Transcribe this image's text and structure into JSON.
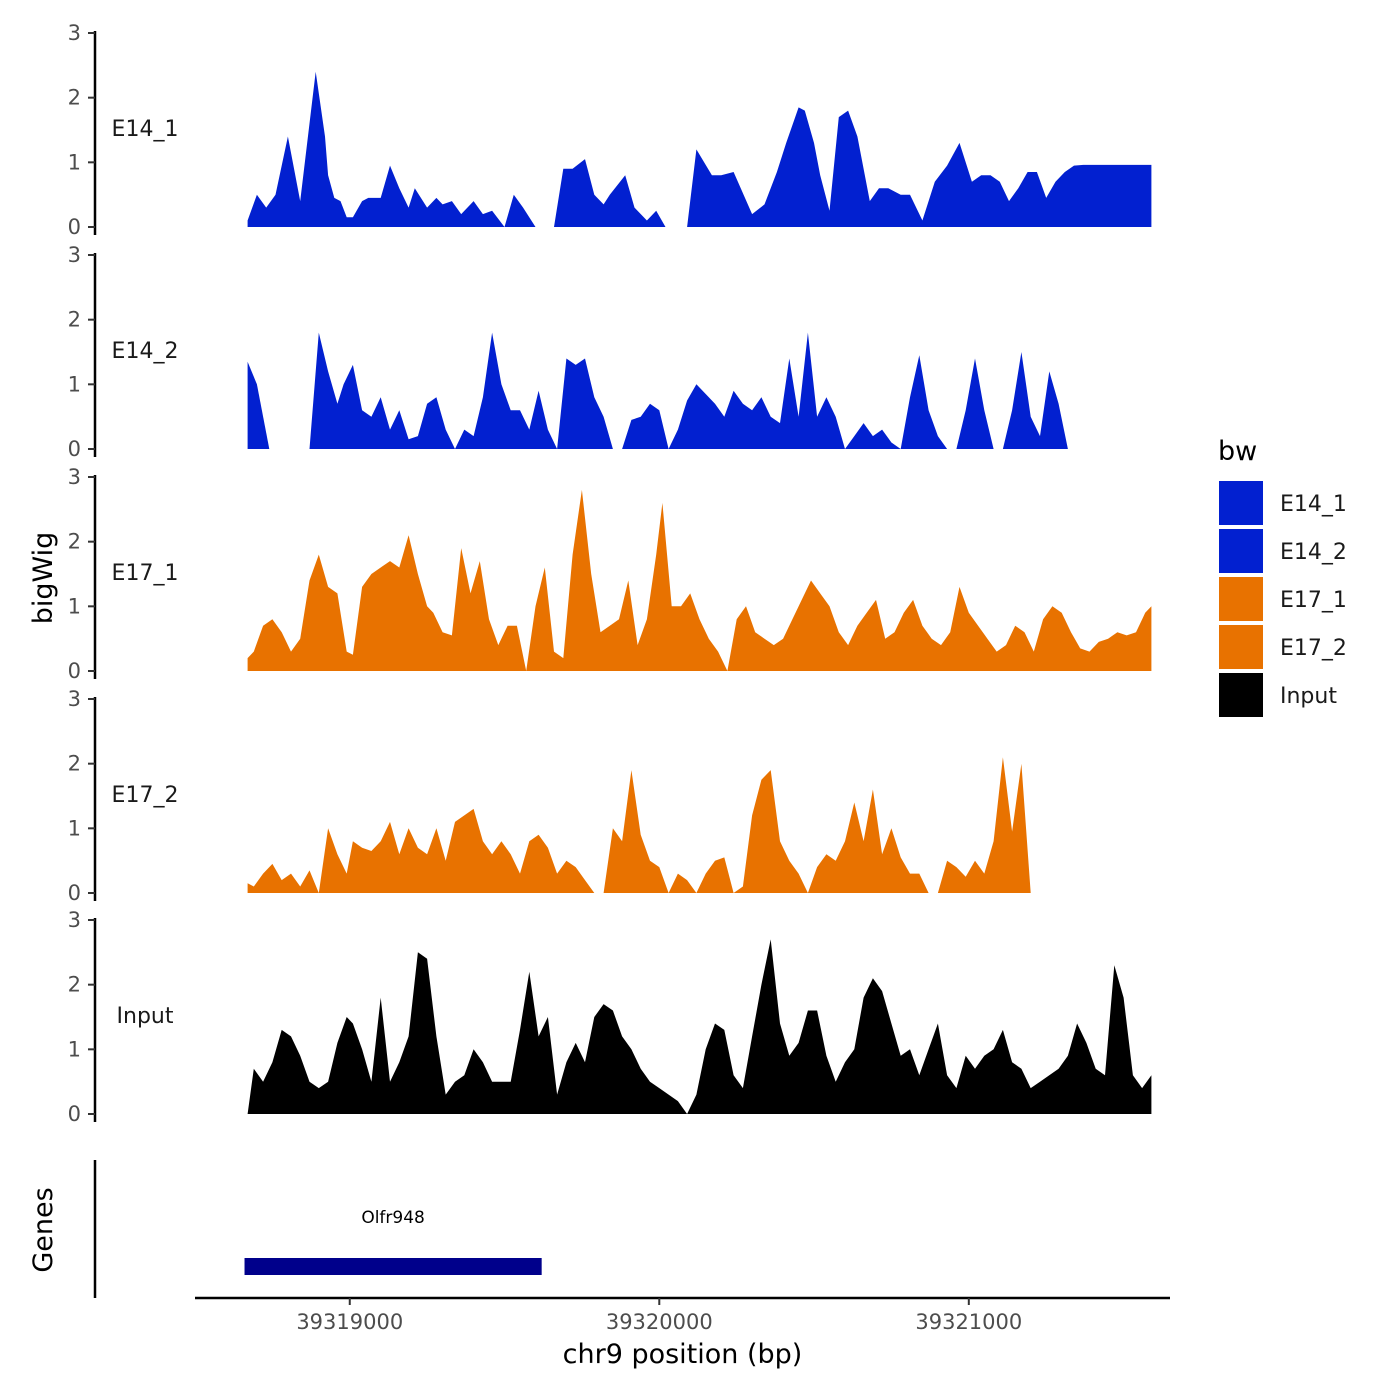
{
  "chart_data": {
    "type": "area",
    "ylabel": "bigWig",
    "xlabel": "chr9 position (bp)",
    "ylim": [
      0,
      3
    ],
    "yticks": [
      0,
      1,
      2,
      3
    ],
    "xlim": [
      39318500,
      39321650
    ],
    "xticks": [
      39319000,
      39320000,
      39321000
    ],
    "xtick_labels": [
      "39319000",
      "39320000",
      "39321000"
    ],
    "legend": {
      "title": "bw",
      "position": "right",
      "entries": [
        {
          "name": "E14_1",
          "color": "#0220D0"
        },
        {
          "name": "E14_2",
          "color": "#0220D0"
        },
        {
          "name": "E17_1",
          "color": "#E87200"
        },
        {
          "name": "E17_2",
          "color": "#E87200"
        },
        {
          "name": "Input",
          "color": "#000000"
        }
      ]
    },
    "series": [
      {
        "name": "E14_1",
        "color": "#0220D0",
        "x": [
          39318670,
          39318700,
          39318730,
          39318760,
          39318800,
          39318840,
          39318870,
          39318890,
          39318920,
          39318930,
          39318950,
          39318970,
          39318990,
          39319010,
          39319040,
          39319060,
          39319100,
          39319130,
          39319160,
          39319190,
          39319210,
          39319250,
          39319280,
          39319300,
          39319330,
          39319360,
          39319400,
          39319430,
          39319460,
          39319500,
          39319530,
          39319560,
          39319600,
          39319630,
          39319660,
          39319690,
          39319720,
          39319760,
          39319790,
          39319820,
          39319840,
          39319890,
          39319920,
          39319960,
          39319990,
          39320020,
          39320060,
          39320090,
          39320120,
          39320170,
          39320200,
          39320240,
          39320300,
          39320340,
          39320380,
          39320410,
          39320450,
          39320470,
          39320500,
          39320520,
          39320550,
          39320580,
          39320610,
          39320640,
          39320680,
          39320710,
          39320740,
          39320780,
          39320810,
          39320850,
          39320890,
          39320930,
          39320970,
          39321010,
          39321040,
          39321070,
          39321100,
          39321130,
          39321160,
          39321190,
          39321220,
          39321250,
          39321280,
          39321310,
          39321340,
          39321370,
          39321400,
          39321430,
          39321460,
          39321490,
          39321510,
          39321540,
          39321560,
          39321590
        ],
        "y": [
          0.1,
          0.5,
          0.3,
          0.5,
          1.4,
          0.4,
          1.6,
          2.4,
          1.4,
          0.8,
          0.45,
          0.4,
          0.15,
          0.15,
          0.4,
          0.45,
          0.45,
          0.95,
          0.6,
          0.3,
          0.6,
          0.3,
          0.45,
          0.35,
          0.4,
          0.2,
          0.4,
          0.2,
          0.25,
          0.0,
          0.5,
          0.3,
          0.0,
          null,
          0.0,
          0.9,
          0.9,
          1.05,
          0.5,
          0.35,
          0.5,
          0.8,
          0.3,
          0.1,
          0.25,
          0.0,
          null,
          0.0,
          1.2,
          0.8,
          0.8,
          0.85,
          0.2,
          0.35,
          0.85,
          1.3,
          1.85,
          1.8,
          1.3,
          0.8,
          0.25,
          1.7,
          1.8,
          1.4,
          0.4,
          0.6,
          0.6,
          0.5,
          0.5,
          0.1,
          0.7,
          0.95,
          1.3,
          0.7,
          0.8,
          0.8,
          0.7,
          0.4,
          0.6,
          0.85,
          0.85,
          0.45,
          0.7,
          0.85,
          0.95,
          0.96,
          0.96,
          0.96,
          0.96,
          0.96,
          0.96,
          0.96,
          0.96,
          0.96
        ]
      },
      {
        "name": "E14_2",
        "color": "#0220D0",
        "x": [
          39318670,
          39318700,
          39318740,
          39318770,
          39318800,
          39318840,
          39318870,
          39318900,
          39318930,
          39318960,
          39318980,
          39319010,
          39319040,
          39319070,
          39319100,
          39319130,
          39319160,
          39319190,
          39319220,
          39319250,
          39319280,
          39319310,
          39319340,
          39319370,
          39319400,
          39319430,
          39319460,
          39319490,
          39319520,
          39319550,
          39319580,
          39319610,
          39319640,
          39319670,
          39319700,
          39319730,
          39319760,
          39319790,
          39319820,
          39319850,
          39319880,
          39319910,
          39319940,
          39319970,
          39320000,
          39320030,
          39320060,
          39320090,
          39320120,
          39320150,
          39320180,
          39320210,
          39320240,
          39320270,
          39320300,
          39320330,
          39320360,
          39320390,
          39320420,
          39320450,
          39320480,
          39320510,
          39320540,
          39320570,
          39320600,
          39320630,
          39320660,
          39320690,
          39320720,
          39320750,
          39320780,
          39320810,
          39320840,
          39320870,
          39320900,
          39320930,
          39320960,
          39320990,
          39321020,
          39321050,
          39321080,
          39321110,
          39321140,
          39321170,
          39321200,
          39321230,
          39321260,
          39321290,
          39321320,
          39321350,
          39321380,
          39321410,
          39321440,
          39321470,
          39321500,
          39321530,
          39321560,
          39321590
        ],
        "y": [
          1.35,
          1.0,
          0.0,
          null,
          null,
          null,
          0.0,
          1.8,
          1.2,
          0.7,
          1.0,
          1.3,
          0.6,
          0.5,
          0.8,
          0.3,
          0.6,
          0.15,
          0.2,
          0.7,
          0.8,
          0.3,
          0.0,
          0.3,
          0.2,
          0.8,
          1.8,
          1.0,
          0.6,
          0.6,
          0.3,
          0.9,
          0.3,
          0.0,
          1.4,
          1.3,
          1.4,
          0.8,
          0.5,
          0.0,
          0.0,
          0.45,
          0.5,
          0.7,
          0.6,
          0.0,
          0.3,
          0.75,
          1.0,
          0.85,
          0.7,
          0.5,
          0.9,
          0.7,
          0.6,
          0.8,
          0.5,
          0.4,
          1.4,
          0.5,
          1.8,
          0.5,
          0.8,
          0.5,
          0.0,
          0.2,
          0.4,
          0.2,
          0.3,
          0.1,
          0.0,
          0.8,
          1.45,
          0.6,
          0.2,
          0.0,
          0.0,
          0.6,
          1.4,
          0.6,
          0.0,
          0.0,
          0.6,
          1.5,
          0.5,
          0.2,
          1.2,
          0.7,
          0.0,
          0.0,
          0.0,
          0.0,
          0.0,
          0.0,
          0.0,
          0.0,
          0.0,
          0.0
        ]
      },
      {
        "name": "E17_1",
        "color": "#E87200",
        "x": [
          39318670,
          39318690,
          39318720,
          39318750,
          39318780,
          39318810,
          39318840,
          39318870,
          39318900,
          39318930,
          39318960,
          39318990,
          39319010,
          39319040,
          39319070,
          39319100,
          39319130,
          39319160,
          39319190,
          39319220,
          39319250,
          39319270,
          39319300,
          39319330,
          39319360,
          39319390,
          39319420,
          39319450,
          39319480,
          39319510,
          39319540,
          39319570,
          39319600,
          39319630,
          39319660,
          39319690,
          39319720,
          39319750,
          39319780,
          39319810,
          39319840,
          39319870,
          39319900,
          39319930,
          39319960,
          39319990,
          39320010,
          39320040,
          39320070,
          39320100,
          39320130,
          39320160,
          39320190,
          39320220,
          39320250,
          39320280,
          39320310,
          39320340,
          39320370,
          39320400,
          39320430,
          39320460,
          39320490,
          39320520,
          39320550,
          39320580,
          39320610,
          39320640,
          39320670,
          39320700,
          39320730,
          39320760,
          39320790,
          39320820,
          39320850,
          39320880,
          39320910,
          39320940,
          39320970,
          39321000,
          39321030,
          39321060,
          39321090,
          39321120,
          39321150,
          39321180,
          39321210,
          39321240,
          39321270,
          39321300,
          39321330,
          39321360,
          39321390,
          39321420,
          39321450,
          39321480,
          39321510,
          39321540,
          39321570,
          39321590
        ],
        "y": [
          0.2,
          0.3,
          0.7,
          0.8,
          0.6,
          0.3,
          0.5,
          1.4,
          1.8,
          1.3,
          1.2,
          0.3,
          0.25,
          1.3,
          1.5,
          1.6,
          1.7,
          1.6,
          2.1,
          1.5,
          1.0,
          0.9,
          0.6,
          0.55,
          1.9,
          1.2,
          1.7,
          0.8,
          0.4,
          0.7,
          0.7,
          0.0,
          1.0,
          1.6,
          0.3,
          0.2,
          1.8,
          2.8,
          1.5,
          0.6,
          0.7,
          0.8,
          1.4,
          0.4,
          0.8,
          1.8,
          2.6,
          1.0,
          1.0,
          1.2,
          0.8,
          0.5,
          0.3,
          0.0,
          0.8,
          1.0,
          0.6,
          0.5,
          0.4,
          0.5,
          0.8,
          1.1,
          1.4,
          1.2,
          1.0,
          0.6,
          0.4,
          0.7,
          0.9,
          1.1,
          0.5,
          0.6,
          0.9,
          1.1,
          0.7,
          0.5,
          0.4,
          0.6,
          1.3,
          0.9,
          0.7,
          0.5,
          0.3,
          0.4,
          0.7,
          0.6,
          0.3,
          0.8,
          1.0,
          0.9,
          0.6,
          0.35,
          0.3,
          0.45,
          0.5,
          0.6,
          0.55,
          0.6,
          0.9,
          1.0
        ]
      },
      {
        "name": "E17_2",
        "color": "#E87200",
        "x": [
          39318670,
          39318690,
          39318720,
          39318750,
          39318780,
          39318810,
          39318840,
          39318870,
          39318900,
          39318930,
          39318960,
          39318990,
          39319010,
          39319040,
          39319070,
          39319100,
          39319130,
          39319160,
          39319190,
          39319220,
          39319250,
          39319280,
          39319310,
          39319340,
          39319370,
          39319400,
          39319430,
          39319460,
          39319490,
          39319520,
          39319550,
          39319580,
          39319610,
          39319640,
          39319670,
          39319700,
          39319730,
          39319760,
          39319790,
          39319820,
          39319850,
          39319880,
          39319910,
          39319940,
          39319970,
          39320000,
          39320030,
          39320060,
          39320090,
          39320120,
          39320150,
          39320180,
          39320210,
          39320240,
          39320270,
          39320300,
          39320330,
          39320360,
          39320390,
          39320420,
          39320450,
          39320480,
          39320510,
          39320540,
          39320570,
          39320600,
          39320630,
          39320660,
          39320690,
          39320720,
          39320750,
          39320780,
          39320810,
          39320840,
          39320870,
          39320900,
          39320930,
          39320960,
          39320990,
          39321020,
          39321050,
          39321080,
          39321110,
          39321140,
          39321170,
          39321200,
          39321230,
          39321260,
          39321290,
          39321320,
          39321350,
          39321380,
          39321410,
          39321440,
          39321470,
          39321500,
          39321530,
          39321560,
          39321580,
          39321590
        ],
        "y": [
          0.15,
          0.1,
          0.3,
          0.45,
          0.2,
          0.3,
          0.1,
          0.35,
          0.0,
          1.0,
          0.6,
          0.3,
          0.8,
          0.7,
          0.65,
          0.8,
          1.1,
          0.6,
          1.0,
          0.7,
          0.6,
          1.0,
          0.5,
          1.1,
          1.2,
          1.3,
          0.8,
          0.6,
          0.8,
          0.6,
          0.3,
          0.8,
          0.9,
          0.7,
          0.3,
          0.5,
          0.4,
          0.2,
          0.0,
          0.0,
          1.0,
          0.8,
          1.9,
          0.9,
          0.5,
          0.4,
          0.0,
          0.3,
          0.2,
          0.0,
          0.3,
          0.5,
          0.55,
          0.0,
          0.1,
          1.2,
          1.75,
          1.9,
          0.8,
          0.5,
          0.3,
          0.0,
          0.4,
          0.6,
          0.5,
          0.8,
          1.4,
          0.8,
          1.6,
          0.6,
          1.0,
          0.55,
          0.3,
          0.3,
          0.0,
          0.0,
          0.5,
          0.4,
          0.25,
          0.5,
          0.3,
          0.8,
          2.1,
          0.95,
          2.0,
          0.0,
          0.0,
          0.0,
          0.0,
          0.0,
          0.0,
          0.0,
          0.0,
          0.0,
          0.0,
          0.0,
          0.0,
          0.0,
          0.0,
          0.0
        ]
      },
      {
        "name": "Input",
        "color": "#000000",
        "x": [
          39318670,
          39318690,
          39318720,
          39318750,
          39318780,
          39318810,
          39318840,
          39318870,
          39318900,
          39318930,
          39318960,
          39318990,
          39319010,
          39319040,
          39319070,
          39319100,
          39319130,
          39319160,
          39319190,
          39319220,
          39319250,
          39319280,
          39319310,
          39319340,
          39319370,
          39319400,
          39319430,
          39319460,
          39319490,
          39319520,
          39319550,
          39319580,
          39319610,
          39319640,
          39319670,
          39319700,
          39319730,
          39319760,
          39319790,
          39319820,
          39319850,
          39319880,
          39319910,
          39319940,
          39319970,
          39320000,
          39320030,
          39320060,
          39320090,
          39320120,
          39320150,
          39320180,
          39320210,
          39320240,
          39320270,
          39320300,
          39320330,
          39320360,
          39320390,
          39320420,
          39320450,
          39320480,
          39320510,
          39320540,
          39320570,
          39320600,
          39320630,
          39320660,
          39320690,
          39320720,
          39320750,
          39320780,
          39320810,
          39320840,
          39320870,
          39320900,
          39320930,
          39320960,
          39320990,
          39321020,
          39321050,
          39321080,
          39321110,
          39321140,
          39321170,
          39321200,
          39321230,
          39321260,
          39321290,
          39321320,
          39321350,
          39321380,
          39321410,
          39321440,
          39321470,
          39321500,
          39321530,
          39321560,
          39321590
        ],
        "y": [
          0.0,
          0.7,
          0.5,
          0.8,
          1.3,
          1.2,
          0.9,
          0.5,
          0.4,
          0.5,
          1.1,
          1.5,
          1.4,
          1.0,
          0.5,
          1.8,
          0.5,
          0.8,
          1.2,
          2.5,
          2.4,
          1.2,
          0.3,
          0.5,
          0.6,
          1.0,
          0.8,
          0.5,
          0.5,
          0.5,
          1.3,
          2.2,
          1.2,
          1.5,
          0.3,
          0.8,
          1.1,
          0.8,
          1.5,
          1.7,
          1.6,
          1.2,
          1.0,
          0.7,
          0.5,
          0.4,
          0.3,
          0.2,
          0.0,
          0.3,
          1.0,
          1.4,
          1.3,
          0.6,
          0.4,
          1.2,
          2.0,
          2.7,
          1.4,
          0.9,
          1.1,
          1.6,
          1.6,
          0.9,
          0.5,
          0.8,
          1.0,
          1.8,
          2.1,
          1.9,
          1.4,
          0.9,
          1.0,
          0.6,
          1.0,
          1.4,
          0.6,
          0.4,
          0.9,
          0.7,
          0.9,
          1.0,
          1.3,
          0.8,
          0.7,
          0.4,
          0.5,
          0.6,
          0.7,
          0.9,
          1.4,
          1.1,
          0.7,
          0.6,
          2.3,
          1.8,
          0.6,
          0.4,
          0.6
        ]
      }
    ],
    "genes": [
      {
        "name": "Olfr948",
        "start": 39318660,
        "end": 39319620,
        "color": "#00008B"
      }
    ],
    "gene_track_label": "Genes"
  }
}
